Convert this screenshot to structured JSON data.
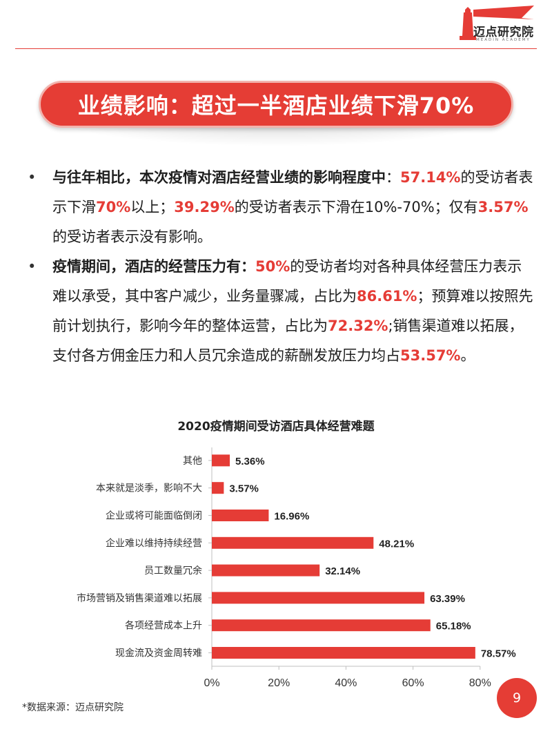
{
  "header": {
    "brand_name": "迈点研究院",
    "brand_sub": "MEADIN ACADEMY",
    "accent_color": "#e53c36"
  },
  "banner": {
    "title": "业绩影响：超过一半酒店业绩下滑70%"
  },
  "bullets": {
    "b1": {
      "lead": "与往年相比，本次疫情对酒店经营业绩的影响程度中",
      "t1": "：",
      "v1": "57.14%",
      "t2": "的受访者表示下滑",
      "v2": "70%",
      "t3": "以上；",
      "v3": "39.29%",
      "t4": "的受访者表示下滑在10%-70%；仅有",
      "v4": "3.57%",
      "t5": "的受访者表示没有影响。"
    },
    "b2": {
      "lead": "疫情期间，酒店的经营压力有：",
      "v1": "50%",
      "t1": "的受访者均对各种具体经营压力表示难以承受，其中客户减少，业务量骤减，占比为",
      "v2": "86.61%",
      "t2": "；预算难以按照先前计划执行，影响今年的整体运营，占比为",
      "v3": "72.32%",
      "t3": ";销售渠道难以拓展，支付各方佣金压力和人员冗余造成的薪酬发放压力均占",
      "v4": "53.57%",
      "t4": "。"
    }
  },
  "chart_data": {
    "type": "bar",
    "orientation": "horizontal",
    "title": "2020疫情期间受访酒店具体经营难题",
    "categories": [
      "其他",
      "本来就是淡季，影响不大",
      "企业或将可能面临倒闭",
      "企业难以维持持续经营",
      "员工数量冗余",
      "市场营销及销售渠道难以拓展",
      "各项经营成本上升",
      "现金流及资金周转难"
    ],
    "values": [
      5.36,
      3.57,
      16.96,
      48.21,
      32.14,
      63.39,
      65.18,
      78.57
    ],
    "value_labels": [
      "5.36%",
      "3.57%",
      "16.96%",
      "48.21%",
      "32.14%",
      "63.39%",
      "65.18%",
      "78.57%"
    ],
    "xlim": [
      0,
      80
    ],
    "xticks": [
      0,
      20,
      40,
      60,
      80
    ],
    "xtick_labels": [
      "0%",
      "20%",
      "40%",
      "60%",
      "80%"
    ],
    "bar_color": "#e53c36",
    "grid": false,
    "legend": "none"
  },
  "footer": {
    "source": "*数据来源：迈点研究院",
    "page_number": "9"
  }
}
